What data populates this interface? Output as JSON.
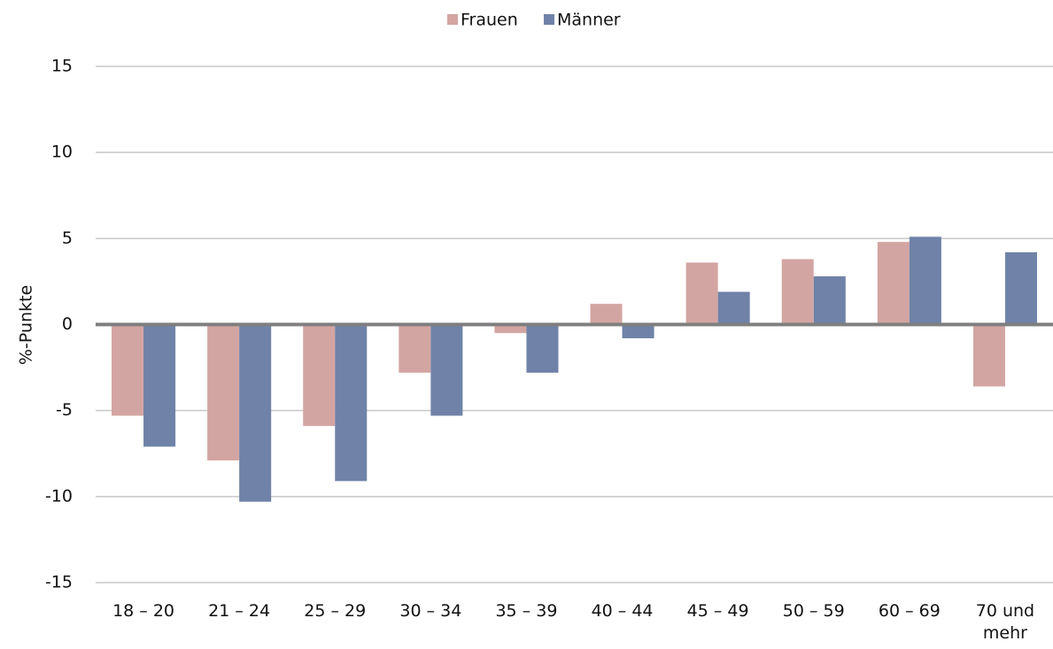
{
  "chart_data": {
    "type": "bar",
    "categories": [
      "18 – 20",
      "21 – 24",
      "25 – 29",
      "30 – 34",
      "35 – 39",
      "40 – 44",
      "45 – 49",
      "50 – 59",
      "60 – 69",
      "70 und mehr"
    ],
    "series": [
      {
        "name": "Frauen",
        "color": "#d3a5a2",
        "values": [
          -5.3,
          -7.9,
          -5.9,
          -2.8,
          -0.5,
          1.2,
          3.6,
          3.8,
          4.8,
          -3.6
        ]
      },
      {
        "name": "Männer",
        "color": "#7082a8",
        "values": [
          -7.1,
          -10.3,
          -9.1,
          -5.3,
          -2.8,
          -0.8,
          1.9,
          2.8,
          5.1,
          4.2
        ]
      }
    ],
    "y_label": "%-Punkte",
    "ylim": [
      -15,
      15
    ],
    "yticks": [
      -15,
      -10,
      -5,
      0,
      5,
      10,
      15
    ],
    "grid": true,
    "legend": "top"
  }
}
